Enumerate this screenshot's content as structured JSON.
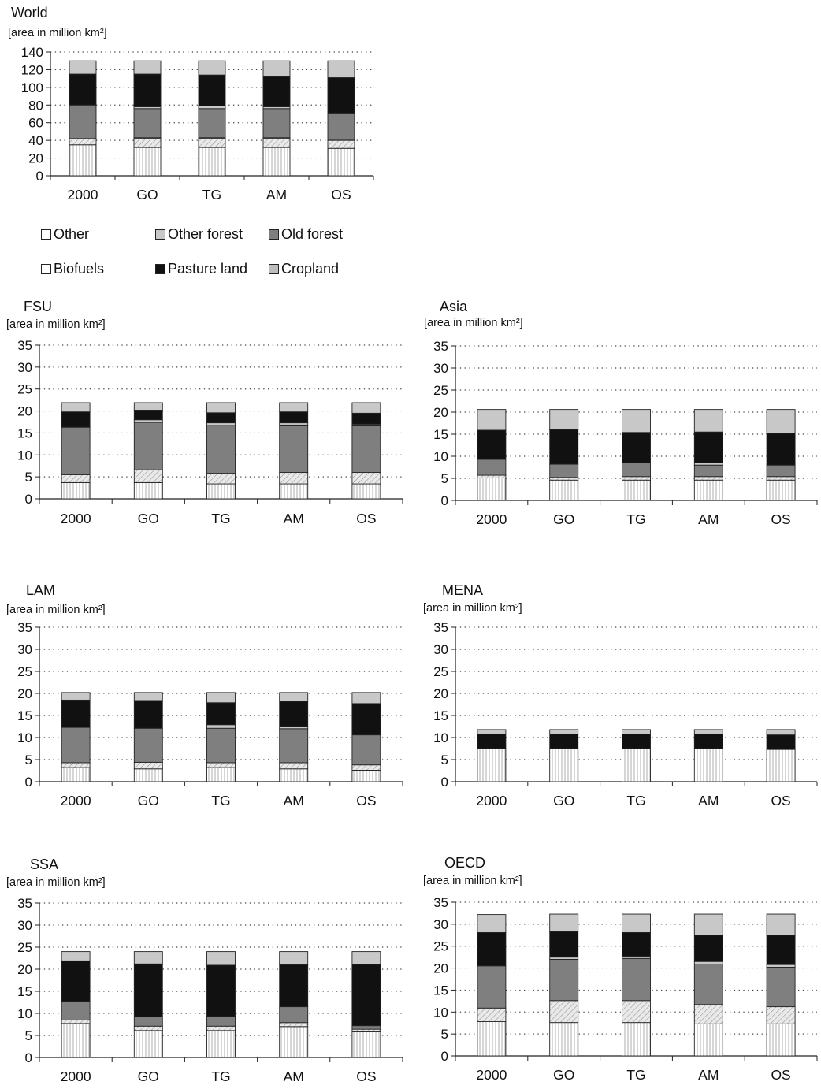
{
  "colors": {
    "Other": "#ffffff",
    "Cropland-stripes": "vertical-hatch",
    "Biofuels": "#ffffff",
    "Cropland": "#bdbdbd",
    "Old forest": "#7f7f7f",
    "Pasture land": "#111111",
    "Other forest": "#c8c8c8"
  },
  "legend": {
    "items": [
      {
        "key": "other",
        "label": "Other",
        "color": "#ffffff"
      },
      {
        "key": "other_forest",
        "label": "Other forest",
        "color": "#c8c8c8"
      },
      {
        "key": "old_forest",
        "label": "Old forest",
        "color": "#7f7f7f"
      },
      {
        "key": "biofuels",
        "label": "Biofuels",
        "color": "#ffffff"
      },
      {
        "key": "pasture",
        "label": "Pasture land",
        "color": "#111111"
      },
      {
        "key": "cropland",
        "label": "Cropland",
        "color": "#bdbdbd"
      }
    ]
  },
  "chart_data": [
    {
      "type": "bar",
      "stacked": true,
      "title": "World",
      "ylabel": "[area in million km²]",
      "categories": [
        "2000",
        "GO",
        "TG",
        "AM",
        "OS"
      ],
      "ylim": [
        0,
        140
      ],
      "yticks": [
        0,
        20,
        40,
        60,
        80,
        100,
        120,
        140
      ],
      "grid": "dotted-horizontal",
      "series": [
        {
          "name": "Other",
          "values": [
            35,
            32,
            32,
            32,
            31
          ]
        },
        {
          "name": "Cropland",
          "values": [
            7,
            10,
            10,
            10,
            9
          ]
        },
        {
          "name": "Biofuels",
          "values": [
            0,
            1,
            1,
            1,
            1
          ]
        },
        {
          "name": "Old forest",
          "values": [
            37,
            33,
            33,
            33,
            29
          ]
        },
        {
          "name": "Other forest",
          "values": [
            1,
            2,
            3,
            2,
            1
          ]
        },
        {
          "name": "Pasture land",
          "values": [
            35,
            37,
            35,
            34,
            40
          ]
        },
        {
          "name": "Other forest",
          "values": [
            15,
            15,
            16,
            18,
            19
          ]
        }
      ]
    },
    {
      "type": "bar",
      "stacked": true,
      "title": "FSU",
      "ylabel": "[area in million km²]",
      "categories": [
        "2000",
        "GO",
        "TG",
        "AM",
        "OS"
      ],
      "ylim": [
        0,
        35
      ],
      "yticks": [
        0,
        5,
        10,
        15,
        20,
        25,
        30,
        35
      ],
      "grid": "dotted-horizontal",
      "series": [
        {
          "name": "Other",
          "values": [
            3.7,
            3.7,
            3.4,
            3.4,
            3.4
          ]
        },
        {
          "name": "Cropland",
          "values": [
            1.8,
            2.9,
            2.4,
            2.6,
            2.6
          ]
        },
        {
          "name": "Biofuels",
          "values": [
            0,
            0,
            0,
            0,
            0
          ]
        },
        {
          "name": "Old forest",
          "values": [
            10.8,
            10.8,
            10.9,
            10.8,
            10.8
          ]
        },
        {
          "name": "Other forest",
          "values": [
            0,
            0.6,
            0.6,
            0.5,
            0.2
          ]
        },
        {
          "name": "Pasture land",
          "values": [
            3.5,
            2.2,
            2.3,
            2.5,
            2.5
          ]
        },
        {
          "name": "Other forest",
          "values": [
            2.1,
            1.7,
            2.3,
            2.1,
            2.4
          ]
        }
      ]
    },
    {
      "type": "bar",
      "stacked": true,
      "title": "Asia",
      "ylabel": "[area in million km²]",
      "categories": [
        "2000",
        "GO",
        "TG",
        "AM",
        "OS"
      ],
      "ylim": [
        0,
        35
      ],
      "yticks": [
        0,
        5,
        10,
        15,
        20,
        25,
        30,
        35
      ],
      "grid": "dotted-horizontal",
      "series": [
        {
          "name": "Other",
          "values": [
            5.1,
            4.6,
            4.6,
            4.6,
            4.6
          ]
        },
        {
          "name": "Cropland",
          "values": [
            0.6,
            0.6,
            0.8,
            0.8,
            0.8
          ]
        },
        {
          "name": "Biofuels",
          "values": [
            0,
            0,
            0,
            0,
            0
          ]
        },
        {
          "name": "Old forest",
          "values": [
            3.6,
            3.0,
            3.1,
            2.6,
            2.6
          ]
        },
        {
          "name": "Other forest",
          "values": [
            0,
            0,
            0,
            0.5,
            0
          ]
        },
        {
          "name": "Pasture land",
          "values": [
            6.6,
            7.8,
            6.9,
            7.0,
            7.2
          ]
        },
        {
          "name": "Other forest",
          "values": [
            4.7,
            4.6,
            5.2,
            5.1,
            5.4
          ]
        }
      ]
    },
    {
      "type": "bar",
      "stacked": true,
      "title": "LAM",
      "ylabel": "[area in million km²]",
      "categories": [
        "2000",
        "GO",
        "TG",
        "AM",
        "OS"
      ],
      "ylim": [
        0,
        35
      ],
      "yticks": [
        0,
        5,
        10,
        15,
        20,
        25,
        30,
        35
      ],
      "grid": "dotted-horizontal",
      "series": [
        {
          "name": "Other",
          "values": [
            3.2,
            2.9,
            3.2,
            2.9,
            2.6
          ]
        },
        {
          "name": "Cropland",
          "values": [
            1.1,
            1.5,
            1.1,
            1.4,
            1.2
          ]
        },
        {
          "name": "Biofuels",
          "values": [
            0,
            0,
            0,
            0,
            0
          ]
        },
        {
          "name": "Old forest",
          "values": [
            8.0,
            7.7,
            7.8,
            7.7,
            6.8
          ]
        },
        {
          "name": "Other forest",
          "values": [
            0,
            0,
            0.8,
            0.5,
            0
          ]
        },
        {
          "name": "Pasture land",
          "values": [
            6.2,
            6.3,
            5.0,
            5.7,
            7.1
          ]
        },
        {
          "name": "Other forest",
          "values": [
            1.7,
            1.8,
            2.3,
            2.0,
            2.5
          ]
        }
      ]
    },
    {
      "type": "bar",
      "stacked": true,
      "title": "MENA",
      "ylabel": "[area in million km²]",
      "categories": [
        "2000",
        "GO",
        "TG",
        "AM",
        "OS"
      ],
      "ylim": [
        0,
        35
      ],
      "yticks": [
        0,
        5,
        10,
        15,
        20,
        25,
        30,
        35
      ],
      "grid": "dotted-horizontal",
      "series": [
        {
          "name": "Other",
          "values": [
            7.5,
            7.5,
            7.5,
            7.5,
            7.3
          ]
        },
        {
          "name": "Cropland",
          "values": [
            0,
            0,
            0,
            0,
            0
          ]
        },
        {
          "name": "Biofuels",
          "values": [
            0,
            0,
            0,
            0,
            0
          ]
        },
        {
          "name": "Old forest",
          "values": [
            0,
            0,
            0,
            0,
            0
          ]
        },
        {
          "name": "Other forest",
          "values": [
            0,
            0,
            0,
            0,
            0
          ]
        },
        {
          "name": "Pasture land",
          "values": [
            3.3,
            3.3,
            3.3,
            3.3,
            3.3
          ]
        },
        {
          "name": "Other forest",
          "values": [
            1.0,
            1.0,
            1.0,
            1.0,
            1.2
          ]
        }
      ]
    },
    {
      "type": "bar",
      "stacked": true,
      "title": "SSA",
      "ylabel": "[area in million km²]",
      "categories": [
        "2000",
        "GO",
        "TG",
        "AM",
        "OS"
      ],
      "ylim": [
        0,
        35
      ],
      "yticks": [
        0,
        5,
        10,
        15,
        20,
        25,
        30,
        35
      ],
      "grid": "dotted-horizontal",
      "series": [
        {
          "name": "Other",
          "values": [
            7.7,
            6.1,
            6.1,
            7.0,
            5.8
          ]
        },
        {
          "name": "Cropland",
          "values": [
            0.8,
            1.0,
            1.0,
            0.9,
            0.6
          ]
        },
        {
          "name": "Biofuels",
          "values": [
            0,
            0,
            0,
            0,
            0
          ]
        },
        {
          "name": "Old forest",
          "values": [
            4.2,
            2.1,
            2.2,
            3.6,
            0.8
          ]
        },
        {
          "name": "Other forest",
          "values": [
            0,
            0,
            0,
            0,
            0
          ]
        },
        {
          "name": "Pasture land",
          "values": [
            9.2,
            12.0,
            11.6,
            9.5,
            13.9
          ]
        },
        {
          "name": "Other forest",
          "values": [
            2.1,
            2.8,
            3.1,
            3.0,
            2.9
          ]
        }
      ]
    },
    {
      "type": "bar",
      "stacked": true,
      "title": "OECD",
      "ylabel": "[area in million km²]",
      "categories": [
        "2000",
        "GO",
        "TG",
        "AM",
        "OS"
      ],
      "ylim": [
        0,
        35
      ],
      "yticks": [
        0,
        5,
        10,
        15,
        20,
        25,
        30,
        35
      ],
      "grid": "dotted-horizontal",
      "series": [
        {
          "name": "Other",
          "values": [
            7.8,
            7.6,
            7.6,
            7.3,
            7.3
          ]
        },
        {
          "name": "Cropland",
          "values": [
            3.1,
            5.0,
            5.0,
            4.4,
            3.9
          ]
        },
        {
          "name": "Biofuels",
          "values": [
            0,
            0,
            0,
            0,
            0
          ]
        },
        {
          "name": "Old forest",
          "values": [
            9.6,
            9.4,
            9.6,
            9.2,
            9.0
          ]
        },
        {
          "name": "Other forest",
          "values": [
            0,
            0.5,
            0.5,
            0.6,
            0.6
          ]
        },
        {
          "name": "Pasture land",
          "values": [
            7.6,
            5.8,
            5.4,
            6.0,
            6.7
          ]
        },
        {
          "name": "Other forest",
          "values": [
            4.1,
            4.0,
            4.2,
            4.8,
            4.8
          ]
        }
      ]
    }
  ]
}
